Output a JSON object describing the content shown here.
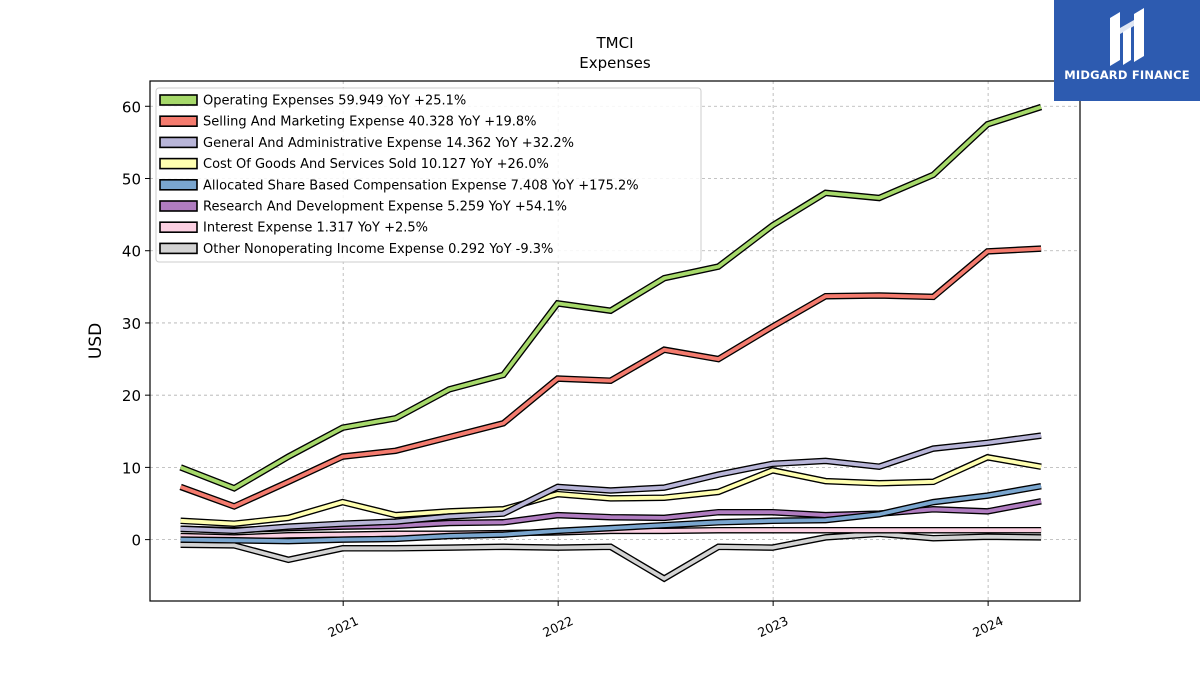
{
  "logo": {
    "text": "MIDGARD FINANCE",
    "background": "#2d5bb0",
    "icon": "midgard-logo-icon"
  },
  "chart_data": {
    "type": "line",
    "title": "TMCI",
    "subtitle": "Expenses",
    "xlabel": "",
    "ylabel": "USD",
    "x_tick_labels": [
      "2021",
      "2022",
      "2023",
      "2024"
    ],
    "y_ticks": [
      0,
      10,
      20,
      30,
      40,
      50,
      60
    ],
    "xlim": [
      "2020-02-08",
      "2024-06-05"
    ],
    "ylim": [
      -8.5,
      63.5
    ],
    "grid": true,
    "legend_position": "top-left",
    "x": [
      "2020-03-31",
      "2020-06-30",
      "2020-09-30",
      "2020-12-31",
      "2021-03-31",
      "2021-06-30",
      "2021-09-30",
      "2021-12-31",
      "2022-03-31",
      "2022-06-30",
      "2022-09-30",
      "2022-12-31",
      "2023-03-31",
      "2023-06-30",
      "2023-09-30",
      "2023-12-31",
      "2024-03-31"
    ],
    "series": [
      {
        "name": "Operating Expenses",
        "legend": "Operating Expenses  59.949 YoY +25.1%",
        "color": "#a6d96a",
        "values": [
          10.0,
          7.1,
          11.5,
          15.5,
          16.8,
          20.8,
          22.8,
          32.7,
          31.7,
          36.2,
          37.8,
          43.5,
          48.0,
          47.3,
          50.5,
          57.5,
          59.9
        ]
      },
      {
        "name": "Selling And Marketing Expense",
        "legend": "Selling And Marketing Expense  40.328 YoY +19.8%",
        "color": "#f47b6e",
        "values": [
          7.3,
          4.6,
          8.0,
          11.5,
          12.3,
          14.2,
          16.1,
          22.3,
          22.0,
          26.3,
          25.0,
          29.5,
          33.7,
          33.8,
          33.6,
          39.9,
          40.3
        ]
      },
      {
        "name": "General And Administrative Expense",
        "legend": "General And Administrative Expense  14.362 YoY +32.2%",
        "color": "#b8b5d8",
        "values": [
          1.5,
          1.2,
          1.8,
          2.2,
          2.5,
          3.2,
          3.6,
          7.3,
          6.8,
          7.2,
          9.0,
          10.5,
          10.9,
          10.1,
          12.6,
          13.4,
          14.4
        ]
      },
      {
        "name": "Cost Of Goods And Services Sold",
        "legend": "Cost Of Goods And Services Sold  10.127 YoY +26.0%",
        "color": "#ffffb0",
        "values": [
          2.6,
          2.2,
          3.0,
          5.2,
          3.4,
          3.9,
          4.2,
          6.3,
          5.7,
          5.8,
          6.6,
          9.6,
          8.1,
          7.8,
          8.0,
          11.4,
          10.1
        ]
      },
      {
        "name": "Allocated Share Based Compensation Expense",
        "legend": "Allocated Share Based Compensation Expense  7.408 YoY +175.2%",
        "color": "#7aa6cf",
        "values": [
          0.0,
          -0.1,
          -0.2,
          0.0,
          0.1,
          0.5,
          0.7,
          1.2,
          1.6,
          2.0,
          2.4,
          2.6,
          2.7,
          3.5,
          5.2,
          6.1,
          7.4
        ]
      },
      {
        "name": "Research And Development Expense",
        "legend": "Research And Development Expense  5.259 YoY +54.1%",
        "color": "#b07cc0",
        "values": [
          1.5,
          1.3,
          1.6,
          1.8,
          1.9,
          2.3,
          2.4,
          3.4,
          3.1,
          3.0,
          3.8,
          3.8,
          3.4,
          3.6,
          4.2,
          3.9,
          5.3
        ]
      },
      {
        "name": "Interest Expense",
        "legend": "Interest Expense  1.317 YoY +2.5%",
        "color": "#fcd0e2",
        "values": [
          0.5,
          0.3,
          0.6,
          0.7,
          0.8,
          0.8,
          0.9,
          1.0,
          1.2,
          1.2,
          1.3,
          1.3,
          1.3,
          1.3,
          1.3,
          1.3,
          1.3
        ]
      },
      {
        "name": "Other Nonoperating Income Expense",
        "legend": "Other Nonoperating Income Expense  0.292 YoY -9.3%",
        "color": "#d3d3d3",
        "values": [
          -0.7,
          -0.8,
          -2.8,
          -1.2,
          -1.2,
          -1.1,
          -1.0,
          -1.1,
          -1.0,
          -5.4,
          -1.0,
          -1.1,
          0.3,
          0.8,
          0.2,
          0.4,
          0.3
        ]
      }
    ]
  }
}
